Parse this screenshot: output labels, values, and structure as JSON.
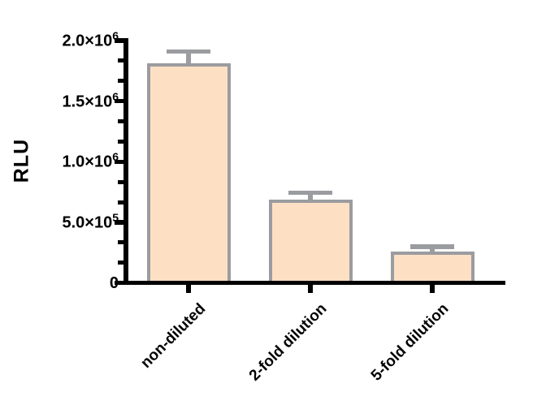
{
  "chart_data": {
    "type": "bar",
    "title": "",
    "ylabel": "RLU",
    "xlabel": "",
    "categories": [
      "non-diluted",
      "2-fold dilution",
      "5-fold dilution"
    ],
    "series": [
      {
        "name": "RLU",
        "values": [
          1810000,
          687000,
          258000
        ],
        "errors": [
          100000,
          58000,
          40000
        ]
      }
    ],
    "ylim": [
      0,
      2000000
    ],
    "ytick_major_interval": 500000,
    "minor_ticks_between_majors": 2,
    "yticks": [
      {
        "value": 0,
        "mantissa": "0",
        "exponent": ""
      },
      {
        "value": 500000,
        "mantissa": "5.0×10",
        "exponent": "5"
      },
      {
        "value": 1000000,
        "mantissa": "1.0×10",
        "exponent": "6"
      },
      {
        "value": 1500000,
        "mantissa": "1.5×10",
        "exponent": "6"
      },
      {
        "value": 2000000,
        "mantissa": "2.0×10",
        "exponent": "6"
      }
    ],
    "x_tick_rotation_deg": 45,
    "grid": false,
    "legend_position": "none",
    "error_bar_style": "upper-cap",
    "colors": {
      "bar_fill": "#FDE0C4",
      "bar_border": "#9B9CA0",
      "error_bar": "#9B9CA0",
      "axis": "#000000",
      "text": "#000000",
      "background": "#FFFFFF"
    }
  }
}
